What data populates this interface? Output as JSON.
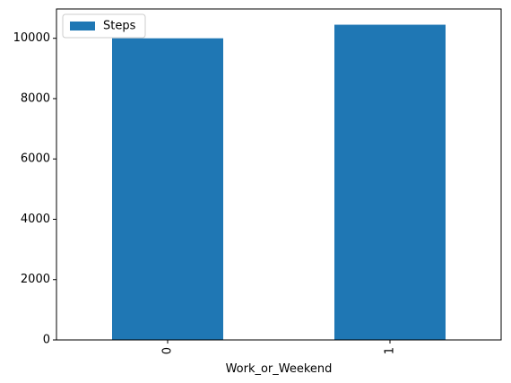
{
  "chart_data": {
    "type": "bar",
    "categories": [
      "0",
      "1"
    ],
    "series": [
      {
        "name": "Steps",
        "values": [
          10000,
          10450
        ]
      }
    ],
    "xlabel": "Work_or_Weekend",
    "ylabel": "",
    "ylim": [
      0,
      10972
    ],
    "yticks": [
      0,
      2000,
      4000,
      6000,
      8000,
      10000
    ],
    "xtick_rotation": "vertical",
    "legend": "top-left",
    "grid": false,
    "bar_color": "#1f77b4"
  }
}
